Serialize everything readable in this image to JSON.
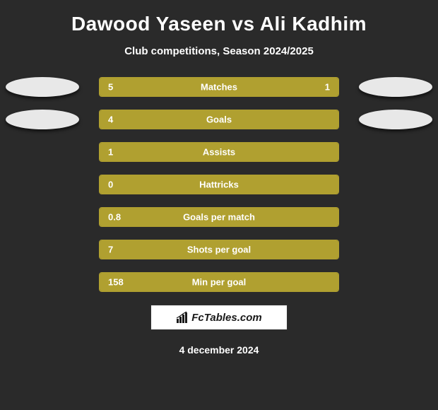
{
  "title": "Dawood Yaseen vs Ali Kadhim",
  "subtitle": "Club competitions, Season 2024/2025",
  "date": "4 december 2024",
  "watermark": "FcTables.com",
  "colors": {
    "background": "#2a2a2a",
    "bar_fill": "#b0a030",
    "bar_border": "#b0a030",
    "text": "#ffffff",
    "ellipse": "#e8e8e8",
    "watermark_bg": "#ffffff",
    "watermark_text": "#1a1a1a"
  },
  "typography": {
    "title_fontsize": 28,
    "subtitle_fontsize": 15,
    "bar_label_fontsize": 13,
    "date_fontsize": 14
  },
  "rows": [
    {
      "label": "Matches",
      "left_value": "5",
      "right_value": "1",
      "left_pct": 83.3,
      "right_pct": 16.7,
      "show_ellipse": true
    },
    {
      "label": "Goals",
      "left_value": "4",
      "right_value": "",
      "left_pct": 100,
      "right_pct": 0,
      "show_ellipse": true
    },
    {
      "label": "Assists",
      "left_value": "1",
      "right_value": "",
      "left_pct": 100,
      "right_pct": 0,
      "show_ellipse": false
    },
    {
      "label": "Hattricks",
      "left_value": "0",
      "right_value": "",
      "left_pct": 100,
      "right_pct": 0,
      "show_ellipse": false
    },
    {
      "label": "Goals per match",
      "left_value": "0.8",
      "right_value": "",
      "left_pct": 100,
      "right_pct": 0,
      "show_ellipse": false
    },
    {
      "label": "Shots per goal",
      "left_value": "7",
      "right_value": "",
      "left_pct": 100,
      "right_pct": 0,
      "show_ellipse": false
    },
    {
      "label": "Min per goal",
      "left_value": "158",
      "right_value": "",
      "left_pct": 100,
      "right_pct": 0,
      "show_ellipse": false
    }
  ]
}
